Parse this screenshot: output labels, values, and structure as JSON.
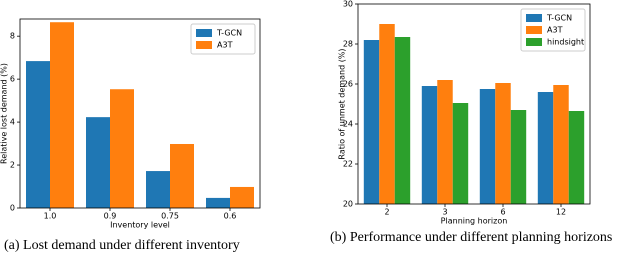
{
  "chart_data": [
    {
      "type": "bar",
      "x_label": "Inventory level",
      "y_label": "Relative lost demand (%)",
      "caption": "(a) Lost demand under different inventory",
      "categories": [
        "1.0",
        "0.9",
        "0.75",
        "0.6"
      ],
      "series": [
        {
          "name": "T-GCN",
          "color": "#1f77b4",
          "values": [
            6.84,
            4.23,
            1.72,
            0.47
          ]
        },
        {
          "name": "A3T",
          "color": "#ff7f0e",
          "values": [
            8.65,
            5.53,
            2.98,
            0.98
          ]
        }
      ],
      "ylim": [
        0,
        8.8
      ],
      "yticks": [
        0,
        2,
        4,
        6,
        8
      ],
      "legend": "upper right"
    },
    {
      "type": "bar",
      "x_label": "Planning horizon",
      "y_label": "Ratio of unmet demand (%)",
      "caption": "(b) Performance under different planning horizons",
      "categories": [
        "2",
        "3",
        "6",
        "12"
      ],
      "series": [
        {
          "name": "T-GCN",
          "color": "#1f77b4",
          "values": [
            28.2,
            25.9,
            25.75,
            25.6
          ]
        },
        {
          "name": "A3T",
          "color": "#ff7f0e",
          "values": [
            29.0,
            26.2,
            26.05,
            25.95
          ]
        },
        {
          "name": "hindsight",
          "color": "#2ca02c",
          "values": [
            28.35,
            25.05,
            24.7,
            24.65
          ]
        }
      ],
      "ylim": [
        20,
        30
      ],
      "yticks": [
        20,
        22,
        24,
        26,
        28,
        30
      ],
      "legend": "upper right"
    }
  ]
}
